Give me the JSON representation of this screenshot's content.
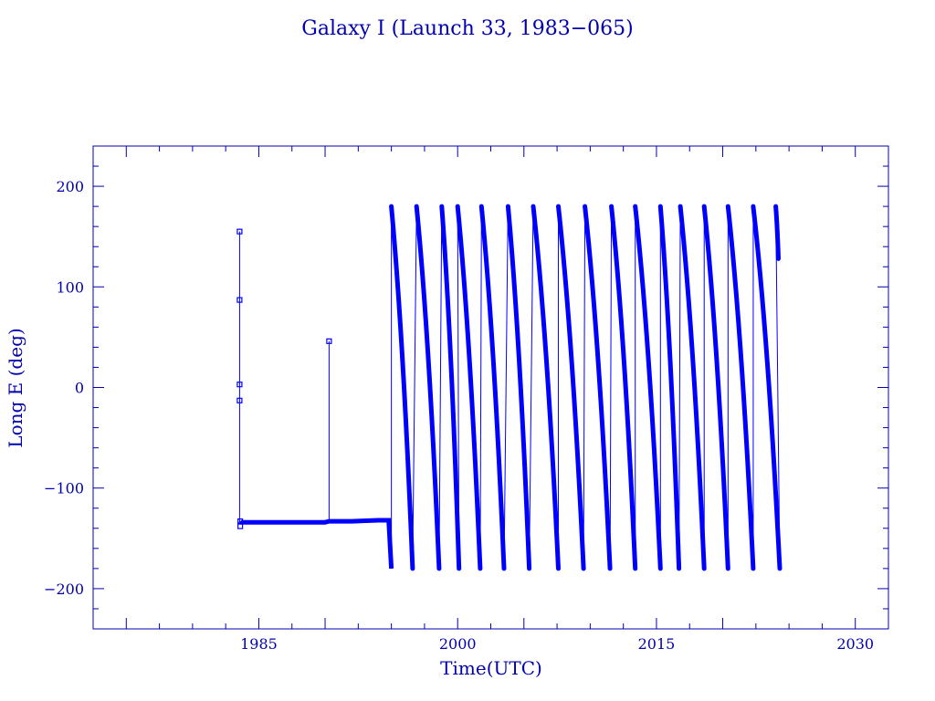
{
  "chart_data": {
    "type": "scatter",
    "title": "Galaxy I (Launch 33, 1983−065)",
    "xlabel": "Time(UTC)",
    "ylabel": "Long E (deg)",
    "xlim": [
      1972.5,
      2032.5
    ],
    "ylim": [
      -240,
      240
    ],
    "x_ticks": [
      1985,
      2000,
      2015,
      2030
    ],
    "y_ticks": [
      200,
      100,
      0,
      -100,
      -200
    ],
    "x_tick_labels": [
      "1985",
      "2000",
      "2015",
      "2030"
    ],
    "y_tick_labels": [
      "200",
      "100",
      "0",
      "−100",
      "−200"
    ],
    "grid": false,
    "color": "#0000ff",
    "axis_color": "#0000b0",
    "station_points": [
      [
        1983.55,
        155
      ],
      [
        1983.55,
        87
      ],
      [
        1983.55,
        3
      ],
      [
        1983.55,
        -13
      ],
      [
        1983.6,
        -133
      ],
      [
        1983.6,
        -138
      ],
      [
        1990.3,
        46
      ]
    ],
    "series": [
      {
        "x": [
          1983.6,
          1983.65,
          1985,
          1987,
          1990,
          1990.3,
          1992,
          1994,
          1994.8,
          1995
        ],
        "y": [
          -133,
          -134,
          -134,
          -134,
          -134,
          -133,
          -133,
          -132,
          -132,
          -180
        ]
      }
    ],
    "drift_cycles": [
      [
        1995.0,
        1996.6
      ],
      [
        1996.9,
        1998.6
      ],
      [
        1998.8,
        2000.1
      ],
      [
        2000.0,
        2001.7
      ],
      [
        2001.8,
        2003.5
      ],
      [
        2003.8,
        2005.4
      ],
      [
        2005.7,
        2007.6
      ],
      [
        2007.6,
        2009.5
      ],
      [
        2009.6,
        2011.5
      ],
      [
        2011.6,
        2013.4
      ],
      [
        2013.4,
        2015.3
      ],
      [
        2015.3,
        2016.7
      ],
      [
        2016.8,
        2018.6
      ],
      [
        2018.6,
        2020.4
      ],
      [
        2020.4,
        2022.3
      ],
      [
        2022.3,
        2024.3
      ],
      [
        2024.0,
        2024.2
      ]
    ],
    "drift_end_y": 128
  }
}
